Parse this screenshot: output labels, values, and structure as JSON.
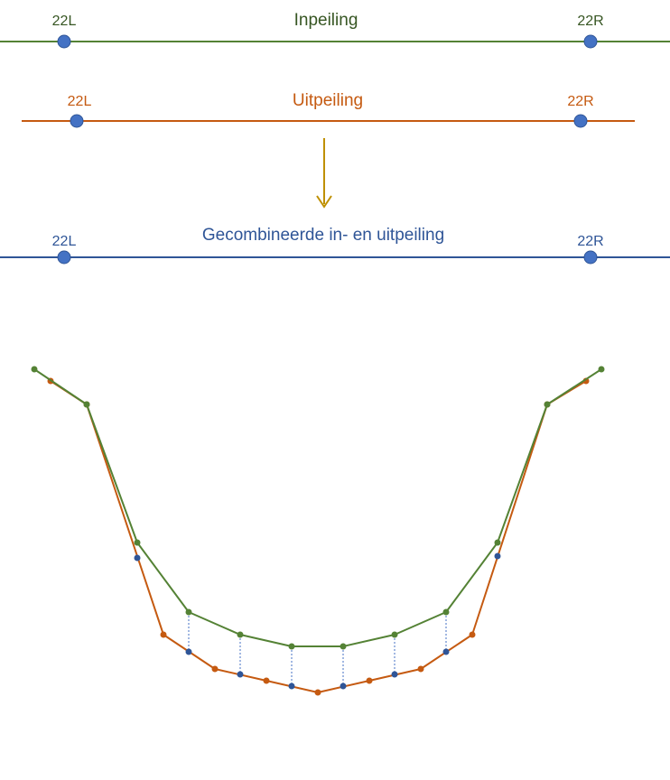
{
  "colors": {
    "inpeiling": "#548235",
    "uitpeiling": "#C55A11",
    "combined": "#2F5597",
    "marker_fill": "#4472C4",
    "arrow": "#BF9000"
  },
  "inpeiling": {
    "title": "Inpeiling",
    "left_label": "22L",
    "right_label": "22R"
  },
  "uitpeiling": {
    "title": "Uitpeiling",
    "left_label": "22L",
    "right_label": "22R"
  },
  "combined": {
    "title": "Gecombineerde in- en uitpeiling",
    "left_label": "22L",
    "right_label": "22R"
  }
}
